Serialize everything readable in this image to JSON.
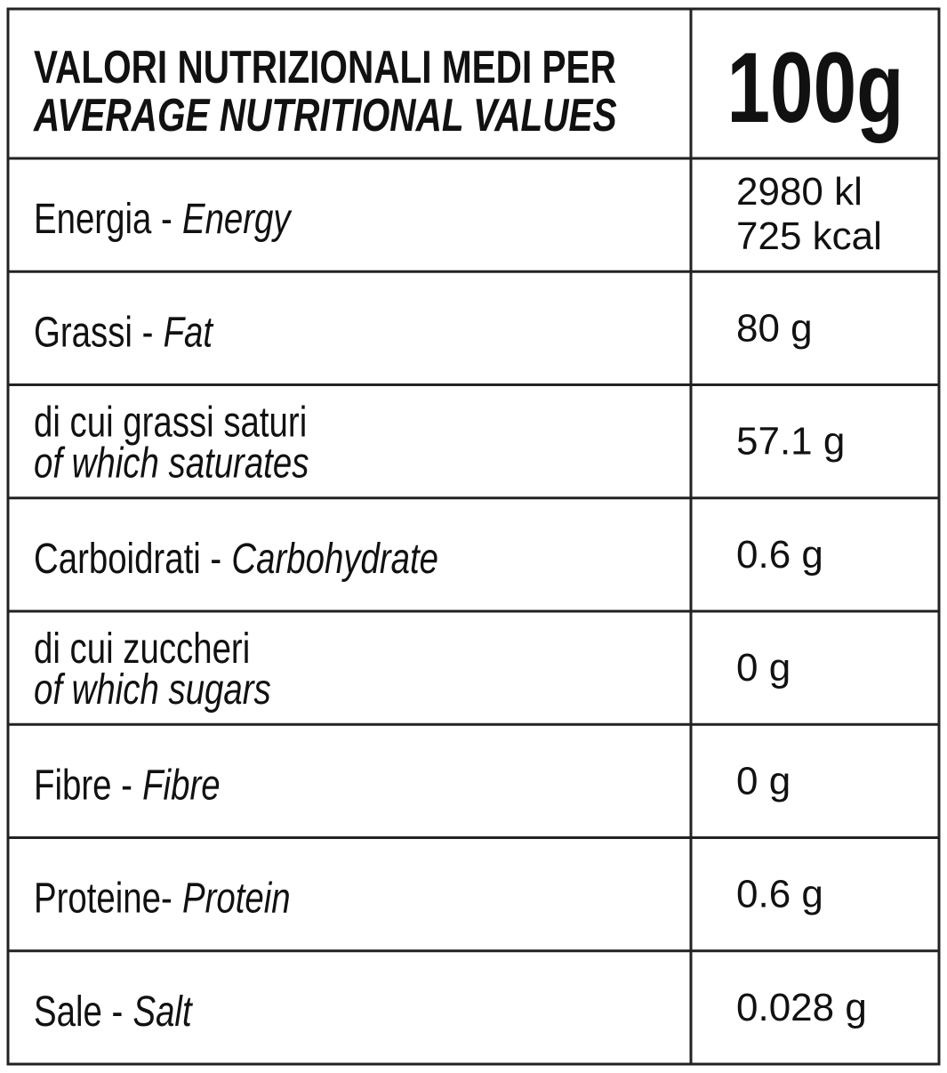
{
  "header": {
    "title_it": "VALORI NUTRIZIONALI MEDI PER",
    "title_en": "AVERAGE NUTRITIONAL VALUES",
    "amount": "100g"
  },
  "rows": [
    {
      "label_it": "Energia -",
      "label_en": "Energy",
      "value": [
        "2980 kl",
        "725 kcal"
      ]
    },
    {
      "label_it": "Grassi -",
      "label_en": "Fat",
      "value": [
        "80 g"
      ]
    },
    {
      "label_it": "di cui grassi saturi",
      "label_en": "of which saturates",
      "two_line": true,
      "value": [
        "57.1 g"
      ]
    },
    {
      "label_it": "Carboidrati -",
      "label_en": "Carbohydrate",
      "value": [
        "0.6 g"
      ]
    },
    {
      "label_it": "di cui zuccheri",
      "label_en": "of which sugars",
      "two_line": true,
      "value": [
        "0 g"
      ]
    },
    {
      "label_it": "Fibre -",
      "label_en": "Fibre",
      "value": [
        "0 g"
      ]
    },
    {
      "label_it": "Proteine-",
      "label_en": "Protein",
      "value": [
        "0.6 g"
      ]
    },
    {
      "label_it": "Sale -",
      "label_en": "Salt",
      "value": [
        "0.028 g"
      ]
    }
  ]
}
